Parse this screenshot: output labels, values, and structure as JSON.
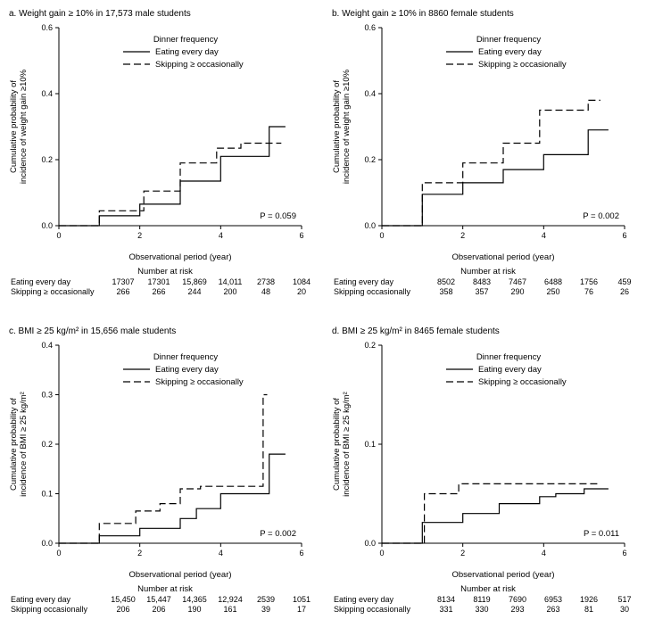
{
  "figure": {
    "background": "#ffffff",
    "line_color": "#000000"
  },
  "chart_data": [
    {
      "id": "a",
      "type": "line",
      "title": "a. Weight gain ≥ 10% in 17,573 male students",
      "xlabel": "Observational period (year)",
      "ylabel_lines": [
        "Cumulative probability of",
        "incidence of weight gain ≥10%"
      ],
      "xlim": [
        0,
        6
      ],
      "ylim": [
        0,
        0.6
      ],
      "xticks": [
        "0",
        "2",
        "4",
        "6"
      ],
      "yticks": [
        "0.0",
        "0.2",
        "0.4",
        "0.6"
      ],
      "legend_title": "Dinner frequency",
      "p_value": "P = 0.059",
      "series": [
        {
          "name": "Eating every day",
          "style": "solid",
          "x": [
            0,
            1,
            2,
            3,
            4,
            5.2,
            5.6
          ],
          "y": [
            0,
            0.03,
            0.065,
            0.135,
            0.21,
            0.3,
            0.3
          ]
        },
        {
          "name": "Skipping ≥ occasionally",
          "style": "dashed",
          "x": [
            0,
            1,
            2.1,
            3,
            3.9,
            4.5,
            5.5
          ],
          "y": [
            0,
            0.045,
            0.105,
            0.19,
            0.235,
            0.25,
            0.25
          ]
        }
      ],
      "risk_table": {
        "header": "Number at risk",
        "rows": [
          {
            "label": "Eating every day",
            "values": [
              "17307",
              "17301",
              "15,869",
              "14,011",
              "2738",
              "1084"
            ]
          },
          {
            "label": "Skipping ≥ occasionally",
            "values": [
              "266",
              "266",
              "244",
              "200",
              "48",
              "20"
            ]
          }
        ]
      }
    },
    {
      "id": "b",
      "type": "line",
      "title": "b. Weight gain ≥ 10% in 8860 female students",
      "xlabel": "Observational period (year)",
      "ylabel_lines": [
        "Cumulative probability of",
        "incidence of weight gain ≥10%"
      ],
      "xlim": [
        0,
        6
      ],
      "ylim": [
        0,
        0.6
      ],
      "xticks": [
        "0",
        "2",
        "4",
        "6"
      ],
      "yticks": [
        "0.0",
        "0.2",
        "0.4",
        "0.6"
      ],
      "legend_title": "Dinner frequency",
      "p_value": "P = 0.002",
      "series": [
        {
          "name": "Eating every day",
          "style": "solid",
          "x": [
            0,
            1,
            2,
            3,
            4,
            5.1,
            5.6
          ],
          "y": [
            0,
            0.095,
            0.13,
            0.17,
            0.215,
            0.29,
            0.29
          ]
        },
        {
          "name": "Skipping ≥ occasionally",
          "style": "dashed",
          "x": [
            0,
            1,
            2,
            3,
            3.9,
            5.1,
            5.4
          ],
          "y": [
            0,
            0.13,
            0.19,
            0.25,
            0.35,
            0.38,
            0.38
          ]
        }
      ],
      "risk_table": {
        "header": "Number at risk",
        "rows": [
          {
            "label": "Eating every day",
            "values": [
              "8502",
              "8483",
              "7467",
              "6488",
              "1756",
              "459"
            ]
          },
          {
            "label": "Skipping occasionally",
            "values": [
              "358",
              "357",
              "290",
              "250",
              "76",
              "26"
            ]
          }
        ]
      }
    },
    {
      "id": "c",
      "type": "line",
      "title": "c. BMI ≥ 25 kg/m² in 15,656 male students",
      "xlabel": "Observational period (year)",
      "ylabel_lines": [
        "Cumulative probability of",
        "incidence of BMI ≥ 25 kg/m²"
      ],
      "xlim": [
        0,
        6
      ],
      "ylim": [
        0,
        0.4
      ],
      "xticks": [
        "0",
        "2",
        "4",
        "6"
      ],
      "yticks": [
        "0.0",
        "0.1",
        "0.2",
        "0.3",
        "0.4"
      ],
      "legend_title": "Dinner frequency",
      "p_value": "P = 0.002",
      "series": [
        {
          "name": "Eating every day",
          "style": "solid",
          "x": [
            0,
            1,
            2,
            3,
            3.4,
            4,
            5.2,
            5.6
          ],
          "y": [
            0,
            0.015,
            0.03,
            0.05,
            0.07,
            0.1,
            0.18,
            0.18
          ]
        },
        {
          "name": "Skipping ≥ occasionally",
          "style": "dashed",
          "x": [
            0,
            1,
            1.9,
            2.5,
            3,
            3.5,
            5.05,
            5.15
          ],
          "y": [
            0,
            0.04,
            0.065,
            0.08,
            0.11,
            0.115,
            0.3,
            0.3
          ]
        }
      ],
      "risk_table": {
        "header": "Number at risk",
        "rows": [
          {
            "label": "Eating every day",
            "values": [
              "15,450",
              "15,447",
              "14,365",
              "12,924",
              "2539",
              "1051"
            ]
          },
          {
            "label": "Skipping occasionally",
            "values": [
              "206",
              "206",
              "190",
              "161",
              "39",
              "17"
            ]
          }
        ]
      }
    },
    {
      "id": "d",
      "type": "line",
      "title": "d. BMI ≥ 25 kg/m² in 8465 female students",
      "xlabel": "Observational period (year)",
      "ylabel_lines": [
        "Cumulative probability of",
        "incidence of BMI ≥ 25 kg/m²"
      ],
      "xlim": [
        0,
        6
      ],
      "ylim": [
        0,
        0.2
      ],
      "xticks": [
        "0",
        "2",
        "4",
        "6"
      ],
      "yticks": [
        "0.0",
        "0.1",
        "0.2"
      ],
      "legend_title": "Dinner frequency",
      "p_value": "P = 0.011",
      "series": [
        {
          "name": "Eating every day",
          "style": "solid",
          "x": [
            0,
            1,
            2,
            2.9,
            3.9,
            4.3,
            5,
            5.6
          ],
          "y": [
            0,
            0.021,
            0.03,
            0.04,
            0.047,
            0.05,
            0.055,
            0.055
          ]
        },
        {
          "name": "Skipping ≥ occasionally",
          "style": "dashed",
          "x": [
            0,
            1.05,
            1.9,
            5.35
          ],
          "y": [
            0,
            0.05,
            0.06,
            0.06
          ]
        }
      ],
      "risk_table": {
        "header": "Number at risk",
        "rows": [
          {
            "label": "Eating every day",
            "values": [
              "8134",
              "8119",
              "7690",
              "6953",
              "1926",
              "517"
            ]
          },
          {
            "label": "Skipping occasionally",
            "values": [
              "331",
              "330",
              "293",
              "263",
              "81",
              "30"
            ]
          }
        ]
      }
    }
  ]
}
